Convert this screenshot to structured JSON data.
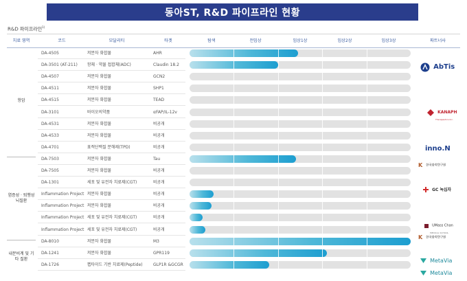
{
  "banner": {
    "title": "동아ST, R&D 파이프라인 현황"
  },
  "subtitle": "R&D 파이프라인",
  "subtitle_sup": "1)",
  "headers": {
    "area": "치료 영역",
    "code": "코드",
    "modality": "모달리티",
    "target": "타겟",
    "discovery": "탐색",
    "preclinical": "전임상",
    "phase1": "임상1상",
    "phase2": "임상2상",
    "phase3": "임상3상",
    "partner": "파트너사"
  },
  "areas": [
    {
      "label": "항암",
      "rows": [
        0,
        8
      ]
    },
    {
      "label": "염증성 · 퇴행성 뇌질환",
      "rows": [
        9,
        15
      ]
    },
    {
      "label": "내분비계 및 기타 질환",
      "rows": [
        16,
        18
      ]
    }
  ],
  "partners": {
    "abtis": "AbTis",
    "kanaph": "KANAPH",
    "kanaph_sub": "Therapeutics Inc.",
    "innon": "inno.N",
    "krict": "한국화학연구원",
    "gc": "GC 녹십자",
    "umass": "UMass Chan",
    "umass_sub": "MEDICAL SCHOOL",
    "metavia": "MetaVia"
  },
  "chart_data": {
    "type": "bar",
    "stages": [
      "탐색",
      "전임상",
      "임상1상",
      "임상2상",
      "임상3상"
    ],
    "xlim": [
      0,
      5
    ],
    "rows": [
      {
        "code": "DA-4505",
        "modality": "저분자 화합물",
        "target": "AHR",
        "progress": 2.45
      },
      {
        "code": "DA-3501 (AT-211)",
        "modality": "항체 · 약물 접합체(ADC)",
        "target": "Claudin 18.2",
        "progress": 2.0
      },
      {
        "code": "DA-4507",
        "modality": "저분자 화합물",
        "target": "GCN2",
        "progress": 0.0
      },
      {
        "code": "DA-4511",
        "modality": "저분자 화합물",
        "target": "SHP1",
        "progress": 0.0
      },
      {
        "code": "DA-4515",
        "modality": "저분자 화합물",
        "target": "TEAD",
        "progress": 0.0
      },
      {
        "code": "DA-3101",
        "modality": "바이오의약품",
        "target": "αFAP/IL-12v",
        "progress": 0.0
      },
      {
        "code": "DA-4531",
        "modality": "저분자 화합물",
        "target": "비공개",
        "progress": 0.0
      },
      {
        "code": "DA-4533",
        "modality": "저분자 화합물",
        "target": "비공개",
        "progress": 0.0
      },
      {
        "code": "DA-4701",
        "modality": "표적단백질 분해제(TPD)",
        "target": "비공개",
        "progress": 0.0
      },
      {
        "code": "DA-7503",
        "modality": "저분자 화합물",
        "target": "Tau",
        "progress": 2.4
      },
      {
        "code": "DA-7505",
        "modality": "저분자 화합물",
        "target": "비공개",
        "progress": 0.0
      },
      {
        "code": "DA-1301",
        "modality": "세포 및 유전자 치료제(CGT)",
        "target": "비공개",
        "progress": 0.0
      },
      {
        "code": "Inflammation Project",
        "modality": "저분자 화합물",
        "target": "비공개",
        "progress": 0.55
      },
      {
        "code": "Inflammation Project",
        "modality": "저분자 화합물",
        "target": "비공개",
        "progress": 0.5
      },
      {
        "code": "Inflammation Project",
        "modality": "세포 및 유전자 치료제(CGT)",
        "target": "비공개",
        "progress": 0.3
      },
      {
        "code": "Inflammation Project",
        "modality": "세포 및 유전자 치료제(CGT)",
        "target": "비공개",
        "progress": 0.35
      },
      {
        "code": "DA-8010",
        "modality": "저분자 화합물",
        "target": "M3",
        "progress": 5.0
      },
      {
        "code": "DA-1241",
        "modality": "저분자 화합물",
        "target": "GPR119",
        "progress": 3.1
      },
      {
        "code": "DA-1726",
        "modality": "펩타이드 기반 치료제(Peptide)",
        "target": "GLP1R &GCGR",
        "progress": 1.8
      }
    ]
  }
}
